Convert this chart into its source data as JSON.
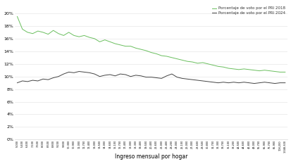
{
  "x_label": "Ingreso mensual por hogar",
  "yticks": [
    0,
    0.02,
    0.04,
    0.06,
    0.08,
    0.1,
    0.12,
    0.14,
    0.16,
    0.18,
    0.2
  ],
  "ylim": [
    0,
    0.215
  ],
  "legend_2018": "Porcentaje de voto por el PRI 2018",
  "legend_2024": "Porcentaje de voto por el PRI 2024",
  "color_2018": "#6abf5e",
  "color_2024": "#444444",
  "background": "#ffffff",
  "xtick_labels": [
    "5,000",
    "5,400",
    "6,400",
    "7,100",
    "7,500",
    "8,000",
    "8,500",
    "8,800",
    "9,200",
    "9,800",
    "10,300",
    "10,900",
    "11,000",
    "11,700",
    "12,400",
    "13,000",
    "13,500",
    "14,000",
    "14,600",
    "15,100",
    "16,700",
    "17,400",
    "18,000",
    "18,300",
    "19,400",
    "19,500",
    "20,400",
    "21,600",
    "22,000",
    "22,400",
    "23,200",
    "24,000",
    "25,100",
    "26,000",
    "27,000",
    "28,600",
    "29,500",
    "30,800",
    "31,700",
    "32,300",
    "33,700",
    "35,100",
    "38,200",
    "42,500",
    "44,600",
    "46,800",
    "48,000",
    "55,700",
    "65,900",
    "75,700",
    "85,900",
    "108,200",
    "1,048,300"
  ],
  "pri2018": [
    0.195,
    0.175,
    0.17,
    0.168,
    0.172,
    0.17,
    0.167,
    0.173,
    0.168,
    0.165,
    0.17,
    0.165,
    0.163,
    0.165,
    0.162,
    0.16,
    0.155,
    0.158,
    0.155,
    0.152,
    0.15,
    0.148,
    0.148,
    0.145,
    0.143,
    0.141,
    0.138,
    0.136,
    0.133,
    0.132,
    0.13,
    0.128,
    0.126,
    0.124,
    0.123,
    0.121,
    0.122,
    0.12,
    0.118,
    0.116,
    0.115,
    0.113,
    0.112,
    0.111,
    0.112,
    0.111,
    0.11,
    0.109,
    0.11,
    0.109,
    0.108,
    0.107,
    0.107
  ],
  "pri2024": [
    0.09,
    0.093,
    0.092,
    0.094,
    0.093,
    0.096,
    0.095,
    0.098,
    0.1,
    0.104,
    0.107,
    0.106,
    0.108,
    0.107,
    0.106,
    0.104,
    0.1,
    0.102,
    0.103,
    0.101,
    0.104,
    0.103,
    0.1,
    0.102,
    0.101,
    0.099,
    0.099,
    0.098,
    0.097,
    0.101,
    0.104,
    0.099,
    0.097,
    0.096,
    0.095,
    0.094,
    0.093,
    0.092,
    0.091,
    0.09,
    0.091,
    0.09,
    0.091,
    0.09,
    0.091,
    0.09,
    0.089,
    0.09,
    0.091,
    0.09,
    0.089,
    0.09,
    0.09
  ],
  "ytick_fontsize": 4.5,
  "xtick_fontsize": 2.5,
  "xlabel_fontsize": 5.5,
  "legend_fontsize": 4.0,
  "linewidth": 0.7
}
